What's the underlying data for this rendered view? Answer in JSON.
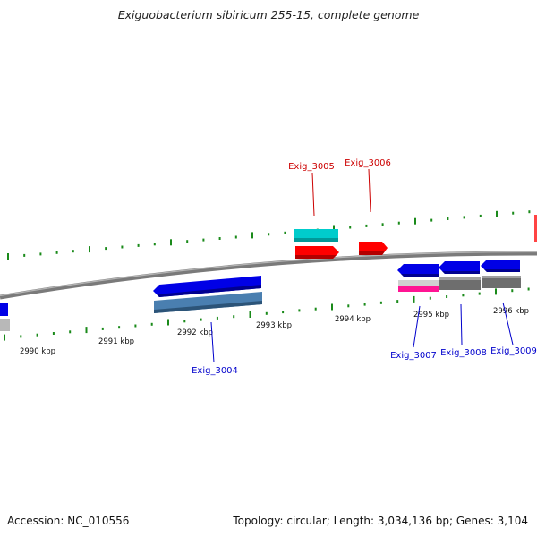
{
  "title": "Exiguobacterium sibiricum 255-15, complete genome",
  "footer": {
    "accession": "Accession: NC_010556",
    "summary": "Topology: circular; Length: 3,034,136 bp; Genes: 3,104"
  },
  "scale": {
    "unit": "kbp",
    "ticks": [
      {
        "label": "2990 kbp"
      },
      {
        "label": "2991 kbp"
      },
      {
        "label": "2992 kbp"
      },
      {
        "label": "2993 kbp"
      },
      {
        "label": "2994 kbp"
      },
      {
        "label": "2995 kbp"
      },
      {
        "label": "2996 kbp"
      }
    ]
  },
  "genes": {
    "exig_3004": "Exig_3004",
    "exig_3005": "Exig_3005",
    "exig_3006": "Exig_3006",
    "exig_3007": "Exig_3007",
    "exig_3008": "Exig_3008",
    "exig_3009": "Exig_3009"
  },
  "colors": {
    "backbone": "#808080",
    "tick": "#1a8a1a",
    "forward_label": "#cc0000",
    "reverse_label": "#0000cc",
    "forward_gene": "#ff0000",
    "reverse_gene": "#0000e6",
    "cyan_feature": "#00cccc",
    "steel_feature": "#4a7fb0",
    "gray_feature": "#6e6e6e",
    "pink_feature": "#ff1493"
  }
}
